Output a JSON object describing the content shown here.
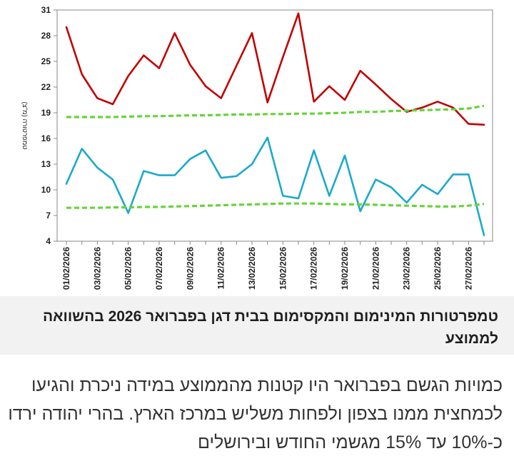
{
  "chart_data": {
    "type": "line",
    "title": "",
    "xlabel": "",
    "ylabel": "טמפרטורה (מ\"צ)",
    "ylim": [
      4,
      31
    ],
    "yticks": [
      4,
      7,
      10,
      13,
      16,
      19,
      22,
      25,
      28,
      31
    ],
    "x_tick_labels": [
      "01/02/2026",
      "03/02/2026",
      "05/02/2026",
      "07/02/2026",
      "09/02/2026",
      "11/02/2026",
      "13/02/2026",
      "15/02/2026",
      "17/02/2026",
      "19/02/2026",
      "21/02/2026",
      "23/02/2026",
      "25/02/2026",
      "27/02/2026"
    ],
    "x": [
      "01/02/2026",
      "02/02/2026",
      "03/02/2026",
      "04/02/2026",
      "05/02/2026",
      "06/02/2026",
      "07/02/2026",
      "08/02/2026",
      "09/02/2026",
      "10/02/2026",
      "11/02/2026",
      "12/02/2026",
      "13/02/2026",
      "14/02/2026",
      "15/02/2026",
      "16/02/2026",
      "17/02/2026",
      "18/02/2026",
      "19/02/2026",
      "20/02/2026",
      "21/02/2026",
      "22/02/2026",
      "23/02/2026",
      "24/02/2026",
      "25/02/2026",
      "26/02/2026",
      "27/02/2026",
      "28/02/2026"
    ],
    "grid": false,
    "legend": "none",
    "series": [
      {
        "color": "#c00000",
        "style": "solid",
        "values": [
          29.0,
          23.5,
          20.7,
          20.0,
          23.3,
          25.7,
          24.2,
          28.3,
          24.6,
          22.1,
          20.7,
          24.5,
          28.3,
          20.2,
          25.5,
          30.6,
          20.3,
          22.1,
          20.5,
          23.9,
          22.3,
          20.6,
          19.1,
          19.6,
          20.3,
          19.6,
          17.7,
          17.6
        ]
      },
      {
        "color": "#1ca9cb",
        "style": "solid",
        "values": [
          10.7,
          14.8,
          12.6,
          11.2,
          7.3,
          12.2,
          11.7,
          11.7,
          13.6,
          14.6,
          11.4,
          11.6,
          13.0,
          16.1,
          9.3,
          9.0,
          14.6,
          9.3,
          14.0,
          7.5,
          11.2,
          10.3,
          8.5,
          10.6,
          9.5,
          11.8,
          11.8,
          4.7
        ]
      },
      {
        "color": "#66d43a",
        "style": "dashed",
        "values": [
          18.5,
          18.5,
          18.5,
          18.5,
          18.55,
          18.6,
          18.6,
          18.65,
          18.7,
          18.7,
          18.75,
          18.8,
          18.8,
          18.85,
          18.85,
          18.9,
          18.9,
          18.95,
          19.0,
          19.1,
          19.1,
          19.2,
          19.25,
          19.3,
          19.35,
          19.4,
          19.5,
          19.8
        ]
      },
      {
        "color": "#66d43a",
        "style": "dashed",
        "values": [
          7.9,
          7.9,
          7.9,
          7.95,
          7.95,
          8.0,
          8.0,
          8.05,
          8.1,
          8.15,
          8.2,
          8.25,
          8.3,
          8.35,
          8.4,
          8.4,
          8.4,
          8.35,
          8.3,
          8.3,
          8.25,
          8.2,
          8.15,
          8.1,
          8.05,
          8.05,
          8.15,
          8.35
        ]
      }
    ]
  },
  "caption": "טמפרטורות המינימום והמקסימום בבית דגן בפברואר 2026 בהשוואה לממוצע",
  "body_text": "כמויות הגשם בפברואר היו קטנות מהממוצע במידה ניכרת והגיעו לכמחצית ממנו בצפון ולפחות משליש במרכז הארץ. בהרי יהודה ירדו כ-10% עד 15% מגשמי החודש ובירושלים"
}
